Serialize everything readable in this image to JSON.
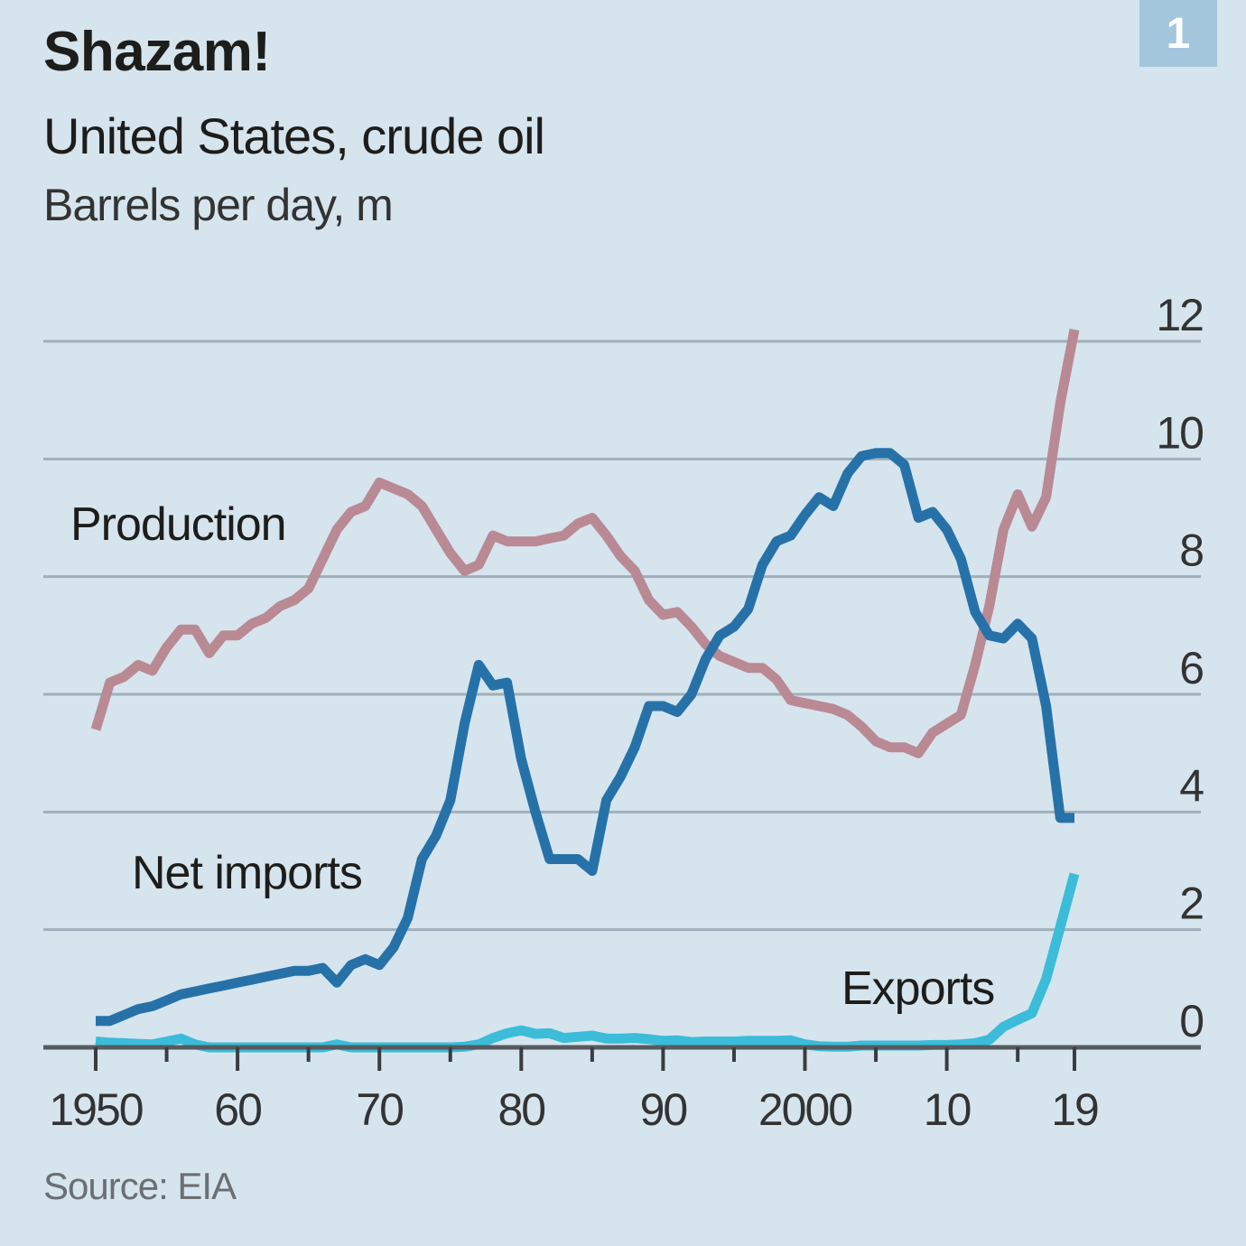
{
  "header": {
    "title": "Shazam!",
    "subtitle": "United States, crude oil",
    "unit": "Barrels per day, m",
    "badge": "1"
  },
  "footer": {
    "source": "Source: EIA"
  },
  "chart_data": {
    "type": "line",
    "title": "Shazam!",
    "subtitle": "United States, crude oil",
    "ylabel": "Barrels per day, m",
    "xlabel": "",
    "xlim": [
      1950,
      2019
    ],
    "ylim": [
      0,
      12
    ],
    "y_axis_side": "right",
    "grid": true,
    "x_ticks": [
      {
        "value": 1950,
        "label": "1950"
      },
      {
        "value": 1960,
        "label": "60"
      },
      {
        "value": 1970,
        "label": "70"
      },
      {
        "value": 1980,
        "label": "80"
      },
      {
        "value": 1990,
        "label": "90"
      },
      {
        "value": 2000,
        "label": "2000"
      },
      {
        "value": 2010,
        "label": "10"
      },
      {
        "value": 2019,
        "label": "19"
      }
    ],
    "x_minor_ticks": [
      1955,
      1965,
      1975,
      1985,
      1995,
      2005,
      2015
    ],
    "y_ticks": [
      {
        "value": 0,
        "label": "0"
      },
      {
        "value": 2,
        "label": "2"
      },
      {
        "value": 4,
        "label": "4"
      },
      {
        "value": 6,
        "label": "6"
      },
      {
        "value": 8,
        "label": "8"
      },
      {
        "value": 10,
        "label": "10"
      },
      {
        "value": 12,
        "label": "12"
      }
    ],
    "series": [
      {
        "name": "Production",
        "color": "#b98a94",
        "x": [
          1950,
          1951,
          1952,
          1953,
          1954,
          1955,
          1956,
          1957,
          1958,
          1959,
          1960,
          1961,
          1962,
          1963,
          1964,
          1965,
          1966,
          1967,
          1968,
          1969,
          1970,
          1971,
          1972,
          1973,
          1974,
          1975,
          1976,
          1977,
          1978,
          1979,
          1980,
          1981,
          1982,
          1983,
          1984,
          1985,
          1986,
          1987,
          1988,
          1989,
          1990,
          1991,
          1992,
          1993,
          1994,
          1995,
          1996,
          1997,
          1998,
          1999,
          2000,
          2001,
          2002,
          2003,
          2004,
          2005,
          2006,
          2007,
          2008,
          2009,
          2010,
          2011,
          2012,
          2013,
          2014,
          2015,
          2016,
          2017,
          2018,
          2019
        ],
        "values": [
          5.4,
          6.2,
          6.3,
          6.5,
          6.4,
          6.8,
          7.1,
          7.1,
          6.7,
          7.0,
          7.0,
          7.2,
          7.3,
          7.5,
          7.6,
          7.8,
          8.3,
          8.8,
          9.1,
          9.2,
          9.6,
          9.5,
          9.4,
          9.2,
          8.8,
          8.4,
          8.1,
          8.2,
          8.7,
          8.6,
          8.6,
          8.6,
          8.65,
          8.7,
          8.9,
          9.0,
          8.7,
          8.35,
          8.1,
          7.6,
          7.35,
          7.4,
          7.15,
          6.85,
          6.65,
          6.55,
          6.45,
          6.45,
          6.25,
          5.9,
          5.85,
          5.8,
          5.75,
          5.65,
          5.45,
          5.2,
          5.1,
          5.1,
          5.0,
          5.35,
          5.5,
          5.65,
          6.5,
          7.5,
          8.8,
          9.4,
          8.85,
          9.35,
          10.95,
          12.2
        ],
        "label_position": "left"
      },
      {
        "name": "Net imports",
        "color": "#2672a8",
        "x": [
          1950,
          1951,
          1952,
          1953,
          1954,
          1955,
          1956,
          1957,
          1958,
          1959,
          1960,
          1961,
          1962,
          1963,
          1964,
          1965,
          1966,
          1967,
          1968,
          1969,
          1970,
          1971,
          1972,
          1973,
          1974,
          1975,
          1976,
          1977,
          1978,
          1979,
          1980,
          1981,
          1982,
          1983,
          1984,
          1985,
          1986,
          1987,
          1988,
          1989,
          1990,
          1991,
          1992,
          1993,
          1994,
          1995,
          1996,
          1997,
          1998,
          1999,
          2000,
          2001,
          2002,
          2003,
          2004,
          2005,
          2006,
          2007,
          2008,
          2009,
          2010,
          2011,
          2012,
          2013,
          2014,
          2015,
          2016,
          2017,
          2018,
          2019
        ],
        "values": [
          0.45,
          0.45,
          0.55,
          0.65,
          0.7,
          0.8,
          0.9,
          0.95,
          1.0,
          1.05,
          1.1,
          1.15,
          1.2,
          1.25,
          1.3,
          1.3,
          1.35,
          1.1,
          1.4,
          1.5,
          1.4,
          1.7,
          2.2,
          3.2,
          3.6,
          4.2,
          5.5,
          6.5,
          6.15,
          6.2,
          4.9,
          4.0,
          3.2,
          3.2,
          3.2,
          3.0,
          4.2,
          4.6,
          5.1,
          5.8,
          5.8,
          5.7,
          6.0,
          6.6,
          7.0,
          7.15,
          7.45,
          8.2,
          8.6,
          8.7,
          9.05,
          9.35,
          9.2,
          9.75,
          10.05,
          10.1,
          10.1,
          9.9,
          9.0,
          9.1,
          8.8,
          8.3,
          7.4,
          7.0,
          6.95,
          7.2,
          6.95,
          5.8,
          3.9,
          3.9
        ],
        "label_position": "left"
      },
      {
        "name": "Exports",
        "color": "#3bbcd8",
        "x": [
          1950,
          1951,
          1952,
          1953,
          1954,
          1955,
          1956,
          1957,
          1958,
          1959,
          1960,
          1961,
          1962,
          1963,
          1964,
          1965,
          1966,
          1967,
          1968,
          1969,
          1970,
          1971,
          1972,
          1973,
          1974,
          1975,
          1976,
          1977,
          1978,
          1979,
          1980,
          1981,
          1982,
          1983,
          1984,
          1985,
          1986,
          1987,
          1988,
          1989,
          1990,
          1991,
          1992,
          1993,
          1994,
          1995,
          1996,
          1997,
          1998,
          1999,
          2000,
          2001,
          2002,
          2003,
          2004,
          2005,
          2006,
          2007,
          2008,
          2009,
          2010,
          2011,
          2012,
          2013,
          2014,
          2015,
          2016,
          2017,
          2018,
          2019
        ],
        "values": [
          0.1,
          0.08,
          0.07,
          0.06,
          0.05,
          0.1,
          0.15,
          0.05,
          0.0,
          0.0,
          0.0,
          0.0,
          0.0,
          0.0,
          0.0,
          0.0,
          0.0,
          0.05,
          0.0,
          0.0,
          0.0,
          0.0,
          0.0,
          0.0,
          0.0,
          0.0,
          0.01,
          0.05,
          0.16,
          0.24,
          0.29,
          0.23,
          0.24,
          0.16,
          0.18,
          0.2,
          0.15,
          0.15,
          0.16,
          0.14,
          0.11,
          0.12,
          0.09,
          0.1,
          0.1,
          0.1,
          0.11,
          0.11,
          0.11,
          0.12,
          0.05,
          0.02,
          0.01,
          0.01,
          0.03,
          0.03,
          0.03,
          0.03,
          0.03,
          0.04,
          0.04,
          0.05,
          0.07,
          0.13,
          0.35,
          0.47,
          0.58,
          1.16,
          2.05,
          2.95
        ],
        "label_position": "bottom-right"
      }
    ],
    "legend": "inline-labels"
  }
}
